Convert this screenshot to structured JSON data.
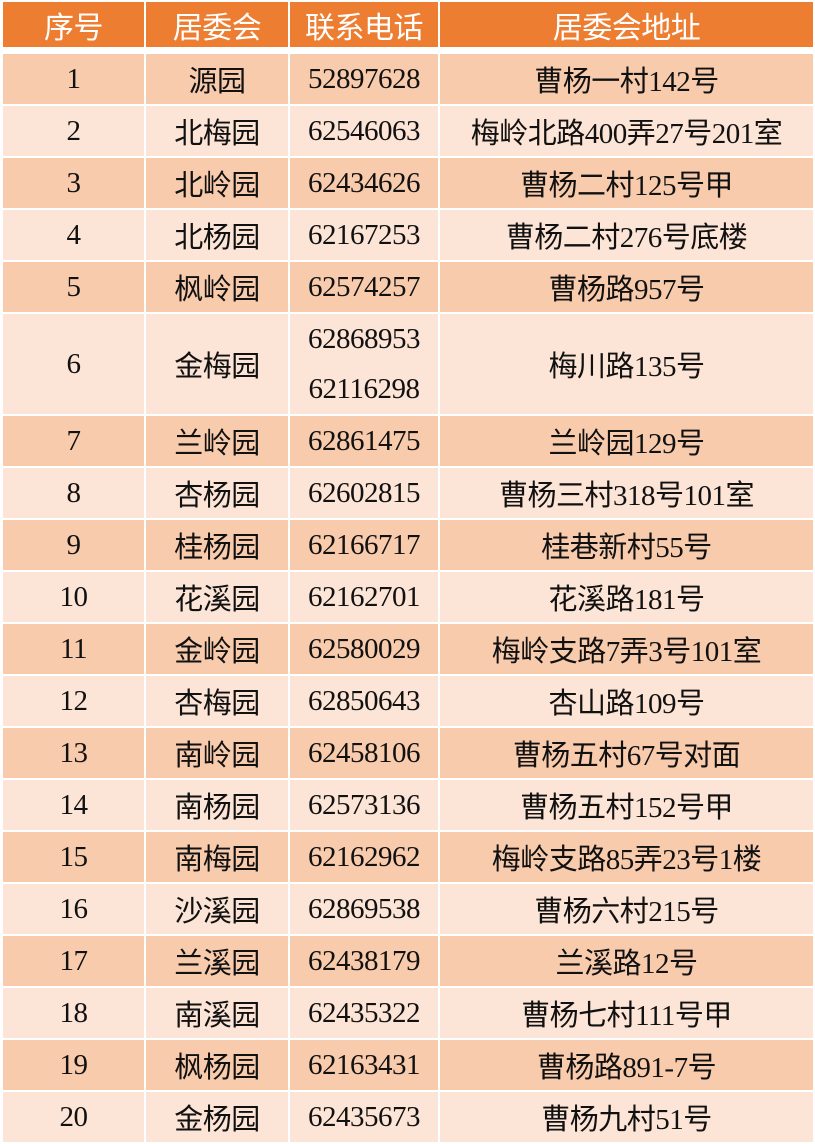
{
  "colors": {
    "header": "#ED7D31",
    "row_odd": "#F8CBAD",
    "row_even": "#FCE4D6"
  },
  "headers": [
    "序号",
    "居委会",
    "联系电话",
    "居委会地址"
  ],
  "rows": [
    {
      "no": "1",
      "name": "源园",
      "phones": [
        "52897628"
      ],
      "address": "曹杨一村142号"
    },
    {
      "no": "2",
      "name": "北梅园",
      "phones": [
        "62546063"
      ],
      "address": "梅岭北路400弄27号201室"
    },
    {
      "no": "3",
      "name": "北岭园",
      "phones": [
        "62434626"
      ],
      "address": "曹杨二村125号甲"
    },
    {
      "no": "4",
      "name": "北杨园",
      "phones": [
        "62167253"
      ],
      "address": "曹杨二村276号底楼"
    },
    {
      "no": "5",
      "name": "枫岭园",
      "phones": [
        "62574257"
      ],
      "address": "曹杨路957号"
    },
    {
      "no": "6",
      "name": "金梅园",
      "phones": [
        "62868953",
        "62116298"
      ],
      "address": "梅川路135号"
    },
    {
      "no": "7",
      "name": "兰岭园",
      "phones": [
        "62861475"
      ],
      "address": "兰岭园129号"
    },
    {
      "no": "8",
      "name": "杏杨园",
      "phones": [
        "62602815"
      ],
      "address": "曹杨三村318号101室"
    },
    {
      "no": "9",
      "name": "桂杨园",
      "phones": [
        "62166717"
      ],
      "address": "桂巷新村55号"
    },
    {
      "no": "10",
      "name": "花溪园",
      "phones": [
        "62162701"
      ],
      "address": "花溪路181号"
    },
    {
      "no": "11",
      "name": "金岭园",
      "phones": [
        "62580029"
      ],
      "address": "梅岭支路7弄3号101室"
    },
    {
      "no": "12",
      "name": "杏梅园",
      "phones": [
        "62850643"
      ],
      "address": "杏山路109号"
    },
    {
      "no": "13",
      "name": "南岭园",
      "phones": [
        "62458106"
      ],
      "address": "曹杨五村67号对面"
    },
    {
      "no": "14",
      "name": "南杨园",
      "phones": [
        "62573136"
      ],
      "address": "曹杨五村152号甲"
    },
    {
      "no": "15",
      "name": "南梅园",
      "phones": [
        "62162962"
      ],
      "address": "梅岭支路85弄23号1楼"
    },
    {
      "no": "16",
      "name": "沙溪园",
      "phones": [
        "62869538"
      ],
      "address": "曹杨六村215号"
    },
    {
      "no": "17",
      "name": "兰溪园",
      "phones": [
        "62438179"
      ],
      "address": "兰溪路12号"
    },
    {
      "no": "18",
      "name": "南溪园",
      "phones": [
        "62435322"
      ],
      "address": "曹杨七村111号甲"
    },
    {
      "no": "19",
      "name": "枫杨园",
      "phones": [
        "62163431"
      ],
      "address": "曹杨路891-7号"
    },
    {
      "no": "20",
      "name": "金杨园",
      "phones": [
        "62435673"
      ],
      "address": "曹杨九村51号"
    }
  ]
}
